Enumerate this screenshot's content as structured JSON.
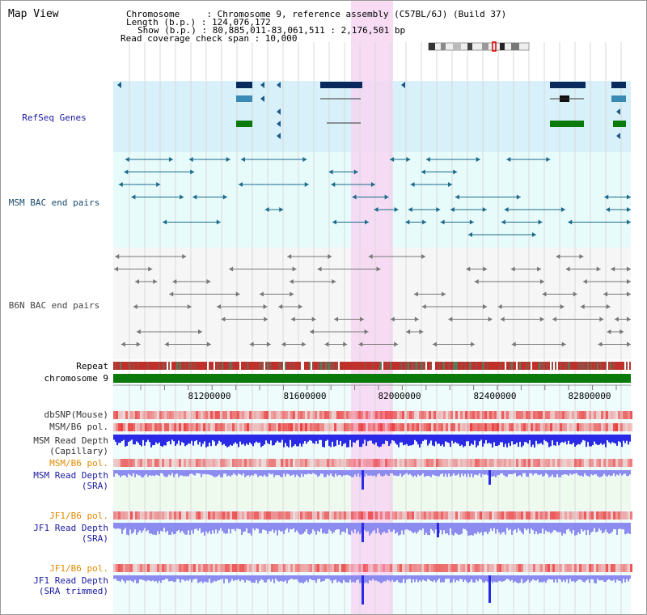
{
  "title": "Map View",
  "info": {
    "line1": "Chromosome     : Chromosome 9, reference assembly (C57BL/6J) (Build 37)",
    "line2": "Length (b.p.) : 124,076,172",
    "line3": "Show (b.p.) : 80,885,011-83,061,511 : 2,176,501 bp",
    "line4": "Read coverage check span : 10,000"
  },
  "tracks": {
    "refseq": "RefSeq Genes",
    "msm_bac": "MSM BAC end pairs",
    "b6n_bac": "B6N BAC end pairs"
  },
  "labels": {
    "repeat": "Repeat",
    "chrom": "chromosome 9",
    "dbsnp": "dbSNP(Mouse)",
    "msm_pol": "MSM/B6 pol.",
    "msm_depth_cap_1": "MSM Read Depth",
    "msm_depth_cap_2": "(Capillary)",
    "msm_pol2": "MSM/B6 pol.",
    "msm_depth_sra_1": "MSM Read Depth",
    "msm_depth_sra_2": "(SRA)",
    "jf1_pol": "JF1/B6 pol.",
    "jf1_depth_sra_1": "JF1 Read Depth",
    "jf1_depth_sra_2": "(SRA)",
    "jf1_pol2": "JF1/B6 pol.",
    "jf1_depth_trim_1": "JF1 Read Depth",
    "jf1_depth_trim_2": "(SRA trimmed)"
  },
  "ticks": [
    "81200000",
    "81600000",
    "82000000",
    "82400000",
    "82800000"
  ],
  "colors": {
    "refseq_bg": "#d8f0fa",
    "msm_bg": "#e8fbfb",
    "highlight": "#f7d6f2",
    "repeat_red": "#c0302a",
    "chrom_green": "#0a7a0a",
    "depth_blue": "#2a2ae6",
    "depth_light": "#8c8cf0",
    "pol_red": "#f03030",
    "label_blue": "#1a1aa0",
    "label_orange": "#e08a00"
  }
}
